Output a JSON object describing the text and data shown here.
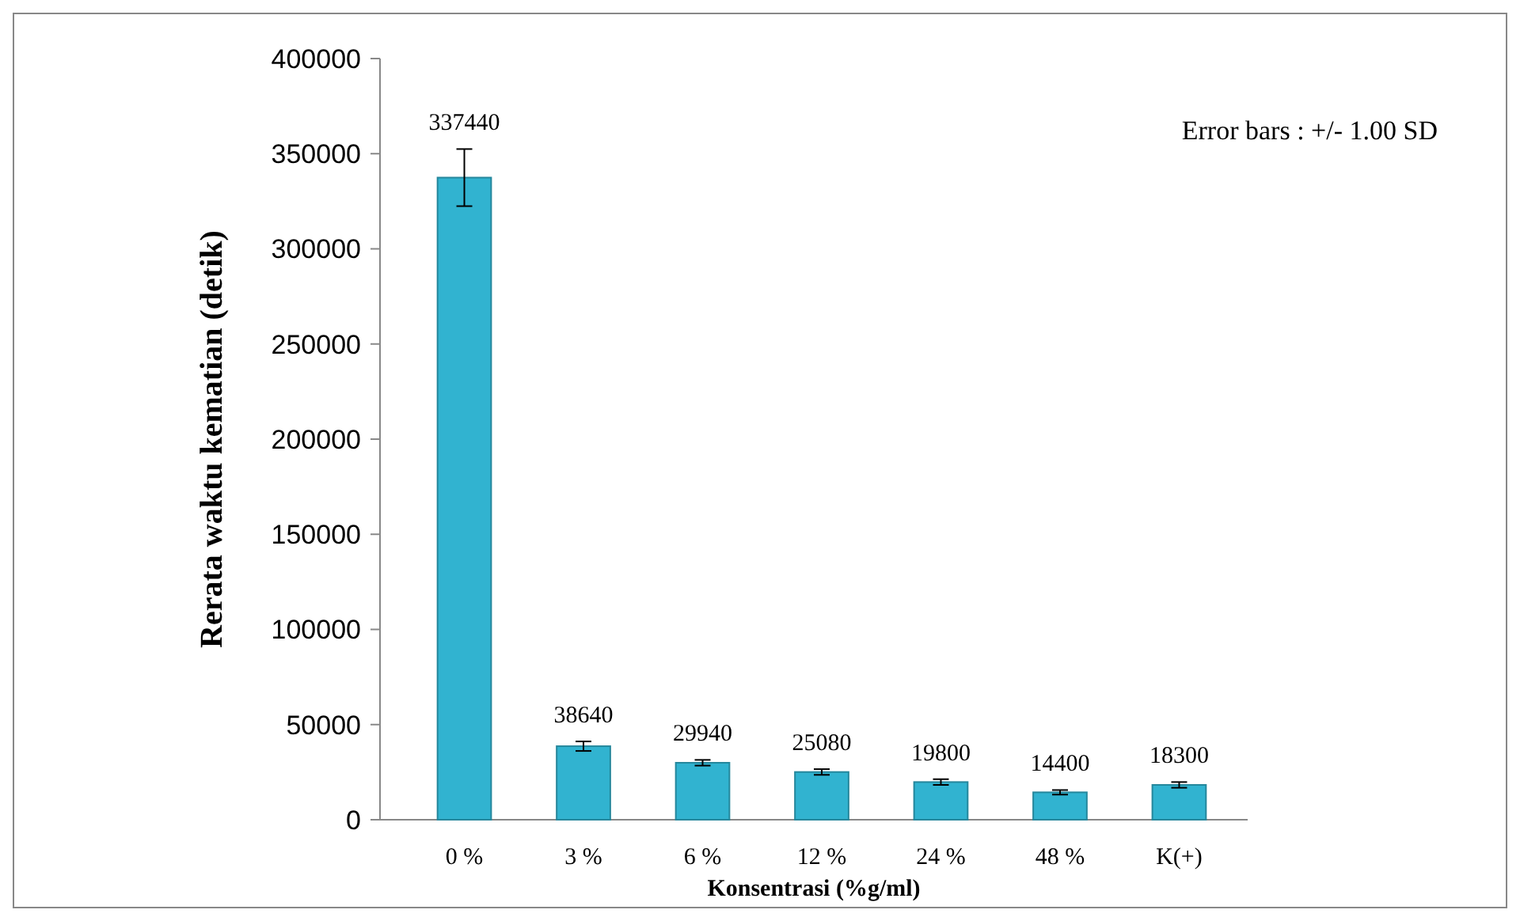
{
  "chart_data": {
    "type": "bar",
    "xlabel": "Konsentrasi (%g/ml)",
    "ylabel": "Rerata waktu kematian (detik)",
    "categories": [
      "0 %",
      "3 %",
      "6 %",
      "12 %",
      "24 %",
      "48 %",
      "K(+)"
    ],
    "values": [
      337440,
      38640,
      29940,
      25080,
      19800,
      14400,
      18300
    ],
    "errors": [
      15000,
      2500,
      1500,
      1500,
      1500,
      1200,
      1500
    ],
    "color": "#31b3d0",
    "data_labels": true,
    "ylim": [
      0,
      400000
    ],
    "yticks": [
      0,
      50000,
      100000,
      150000,
      200000,
      250000,
      300000,
      350000,
      400000
    ],
    "grid": false,
    "annotations": [
      "Error bars : +/- 1.00 SD"
    ]
  }
}
